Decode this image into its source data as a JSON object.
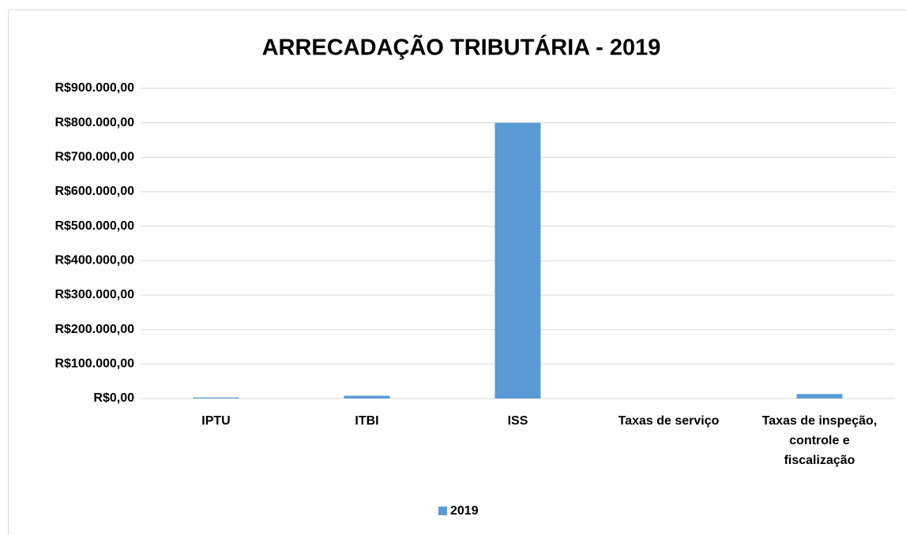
{
  "chart_data": {
    "type": "bar",
    "title": "ARRECADAÇÃO TRIBUTÁRIA - 2019",
    "categories": [
      "IPTU",
      "ITBI",
      "ISS",
      "Taxas de serviço",
      "Taxas de inspeção, controle e fiscalização"
    ],
    "series": [
      {
        "name": "2019",
        "color": "#5b9bd5",
        "values": [
          3000,
          8000,
          800000,
          0,
          13000
        ]
      }
    ],
    "ylim": [
      0,
      900000
    ],
    "yticks": [
      {
        "value": 0,
        "label": "R$0,00"
      },
      {
        "value": 100000,
        "label": "R$100.000,00"
      },
      {
        "value": 200000,
        "label": "R$200.000,00"
      },
      {
        "value": 300000,
        "label": "R$300.000,00"
      },
      {
        "value": 400000,
        "label": "R$400.000,00"
      },
      {
        "value": 500000,
        "label": "R$500.000,00"
      },
      {
        "value": 600000,
        "label": "R$600.000,00"
      },
      {
        "value": 700000,
        "label": "R$700.000,00"
      },
      {
        "value": 800000,
        "label": "R$800.000,00"
      },
      {
        "value": 900000,
        "label": "R$900.000,00"
      }
    ],
    "grid": true,
    "legend": "bottom"
  }
}
